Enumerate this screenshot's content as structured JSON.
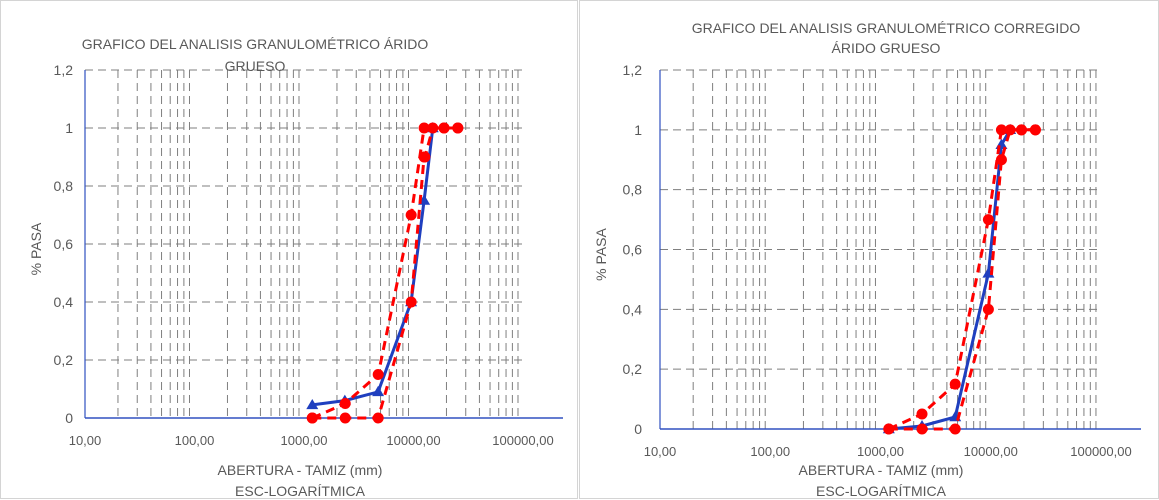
{
  "chart_data": [
    {
      "type": "line",
      "title_lines": [
        "GRAFICO DEL ANALISIS  GRANULOMÉTRICO ÁRIDO",
        "GRUESO"
      ],
      "xlabel": "ABERTURA - TAMIZ (mm)",
      "xlabel2": "ESC-LOGARÍTMICA",
      "ylabel": "% PASA",
      "x_scale": "log",
      "xlim": [
        10,
        100000
      ],
      "ylim": [
        0,
        1.2
      ],
      "x_ticks": [
        "10,00",
        "100,00",
        "1000,00",
        "10000,00",
        "100000,00"
      ],
      "y_ticks": [
        "0",
        "0,2",
        "0,4",
        "0,6",
        "0,8",
        "1",
        "1,2"
      ],
      "grid": "dashed log grid",
      "series": [
        {
          "color": "#1f3fbf",
          "line": "solid",
          "marker": "triangle",
          "points": [
            [
              1190,
              0.045
            ],
            [
              2360,
              0.06
            ],
            [
              4750,
              0.09
            ],
            [
              9500,
              0.4
            ],
            [
              12500,
              0.75
            ],
            [
              15000,
              1.0
            ]
          ]
        },
        {
          "color": "#ff0000",
          "line": "dashed",
          "marker": "circle",
          "points": [
            [
              1190,
              0
            ],
            [
              2380,
              0
            ],
            [
              4760,
              0
            ],
            [
              9520,
              0.4
            ],
            [
              12500,
              0.9
            ],
            [
              12700,
              0.9
            ],
            [
              15000,
              1.0
            ],
            [
              19000,
              1.0
            ],
            [
              25400,
              1.0
            ]
          ]
        },
        {
          "color": "#ff0000",
          "line": "dashed",
          "marker": "circle",
          "points": [
            [
              1190,
              0
            ],
            [
              2380,
              0.05
            ],
            [
              4760,
              0.15
            ],
            [
              9520,
              0.7
            ],
            [
              12500,
              1.0
            ],
            [
              19000,
              1.0
            ],
            [
              25400,
              1.0
            ]
          ]
        }
      ]
    },
    {
      "type": "line",
      "title_lines": [
        "GRAFICO DEL ANALISIS  GRANULOMÉTRICO CORREGIDO",
        "ÁRIDO GRUESO"
      ],
      "xlabel": "ABERTURA - TAMIZ (mm)",
      "xlabel2": "ESC-LOGARÍTMICA",
      "ylabel": "% PASA",
      "x_scale": "log",
      "xlim": [
        10,
        100000
      ],
      "ylim": [
        0,
        1.2
      ],
      "x_ticks": [
        "10,00",
        "100,00",
        "1000,00",
        "10000,00",
        "100000,00"
      ],
      "y_ticks": [
        "0",
        "0,2",
        "0,4",
        "0,6",
        "0,8",
        "1",
        "1,2"
      ],
      "grid": "dashed log grid",
      "series": [
        {
          "color": "#1f3fbf",
          "line": "solid",
          "marker": "triangle",
          "points": [
            [
              1190,
              0
            ],
            [
              2380,
              0.01
            ],
            [
              4760,
              0.04
            ],
            [
              9520,
              0.52
            ],
            [
              12500,
              0.95
            ],
            [
              15000,
              1.0
            ]
          ]
        },
        {
          "color": "#ff0000",
          "line": "dashed",
          "marker": "circle",
          "points": [
            [
              1190,
              0
            ],
            [
              2380,
              0
            ],
            [
              4760,
              0
            ],
            [
              9520,
              0.4
            ],
            [
              12500,
              0.9
            ],
            [
              15000,
              1.0
            ],
            [
              19000,
              1.0
            ],
            [
              25400,
              1.0
            ]
          ]
        },
        {
          "color": "#ff0000",
          "line": "dashed",
          "marker": "circle",
          "points": [
            [
              1190,
              0
            ],
            [
              2380,
              0.05
            ],
            [
              4760,
              0.15
            ],
            [
              9520,
              0.7
            ],
            [
              12500,
              1.0
            ],
            [
              19000,
              1.0
            ],
            [
              25400,
              1.0
            ]
          ]
        }
      ]
    }
  ]
}
